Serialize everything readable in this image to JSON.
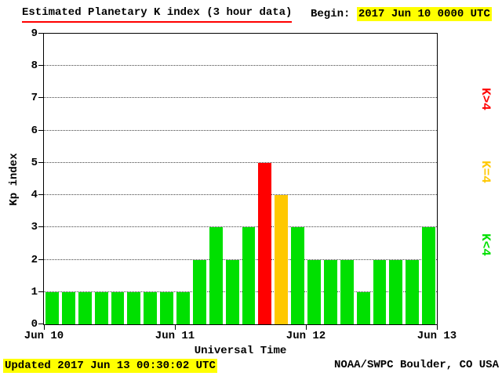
{
  "header": {
    "title": "Estimated Planetary K index (3 hour data)",
    "begin_label": "Begin:",
    "begin_value": "2017 Jun 10 0000 UTC"
  },
  "footer": {
    "updated": "Updated 2017 Jun 13 00:30:02 UTC",
    "source": "NOAA/SWPC Boulder, CO USA"
  },
  "colors": {
    "highlight": "#ffff00",
    "title_underline": "#ff0000",
    "bar_low": "#00e000",
    "bar_mid": "#ffc800",
    "bar_high": "#ff0000",
    "axis": "#000000",
    "background": "#ffffff"
  },
  "chart_data": {
    "type": "bar",
    "title": "Estimated Planetary K index (3 hour data)",
    "xlabel": "Universal Time",
    "ylabel": "Kp index",
    "ylim": [
      0,
      9
    ],
    "y_ticks": [
      0,
      1,
      2,
      3,
      4,
      5,
      6,
      7,
      8,
      9
    ],
    "x_tick_labels": [
      "Jun 10",
      "Jun 11",
      "Jun 12",
      "Jun 13"
    ],
    "interval_hours": 3,
    "begin": "2017 Jun 10 0000 UTC",
    "values": [
      1,
      1,
      1,
      1,
      1,
      1,
      1,
      1,
      1,
      2,
      3,
      2,
      3,
      5,
      4,
      3,
      2,
      2,
      2,
      1,
      2,
      2,
      2,
      3
    ],
    "bar_color_rule": {
      "K<4": "#00e000",
      "K=4": "#ffc800",
      "K>4": "#ff0000"
    },
    "legend": [
      {
        "label": "K>4",
        "color": "#ff0000"
      },
      {
        "label": "K=4",
        "color": "#ffc800"
      },
      {
        "label": "K<4",
        "color": "#00e000"
      }
    ],
    "grid": "dotted horizontal lines at integer Kp values",
    "legend_position": "right"
  }
}
